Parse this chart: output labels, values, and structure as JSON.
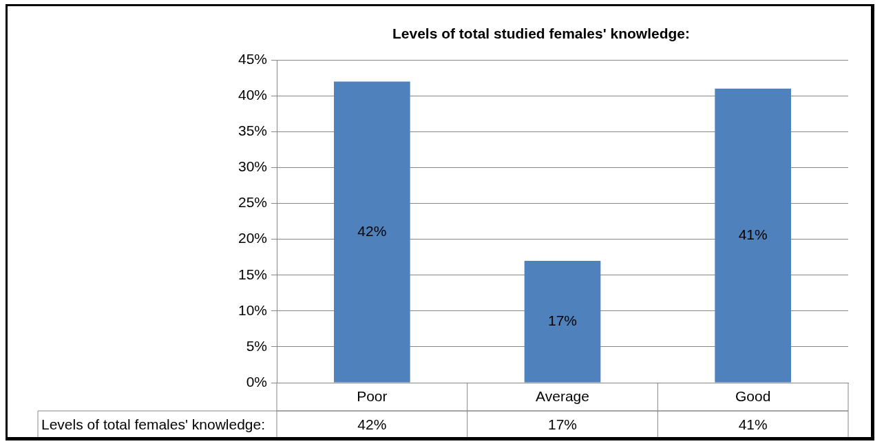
{
  "chart_data": {
    "type": "bar",
    "title": "Levels of total studied females' knowledge:",
    "categories": [
      "Poor",
      "Average",
      "Good"
    ],
    "series": [
      {
        "name": "Levels of total females' knowledge:",
        "color": "#4f81bd",
        "values": [
          42,
          17,
          41
        ],
        "value_labels": [
          "42%",
          "17%",
          "41%"
        ]
      }
    ],
    "ylim": [
      0,
      45
    ],
    "yticks": [
      {
        "value": 0,
        "label": "0%"
      },
      {
        "value": 5,
        "label": "5%"
      },
      {
        "value": 10,
        "label": "10%"
      },
      {
        "value": 15,
        "label": "15%"
      },
      {
        "value": 20,
        "label": "20%"
      },
      {
        "value": 25,
        "label": "25%"
      },
      {
        "value": 30,
        "label": "30%"
      },
      {
        "value": 35,
        "label": "35%"
      },
      {
        "value": 40,
        "label": "40%"
      },
      {
        "value": 45,
        "label": "45%"
      }
    ],
    "grid": "y",
    "legend": false
  }
}
